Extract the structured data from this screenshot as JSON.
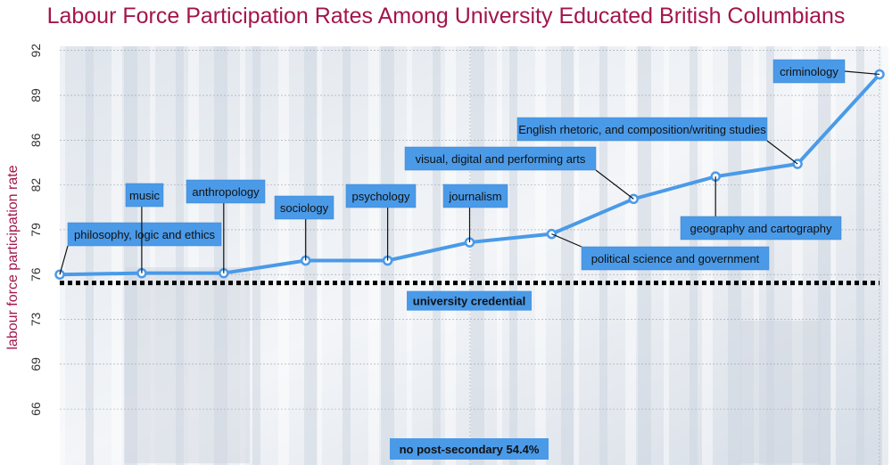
{
  "chart_data": {
    "type": "line",
    "title": "Labour Force Participation Rates Among University Educated British Columbians",
    "xlabel": "",
    "ylabel": "labour force participation rate",
    "ylim": [
      62.4,
      92.3
    ],
    "yticks": [
      92.0,
      88.8,
      85.6,
      82.4,
      79.2,
      76.0,
      72.8,
      69.6,
      66.4
    ],
    "ytick_labels": [
      "92",
      "89",
      "86",
      "82",
      "79",
      "76",
      "73",
      "69",
      "66"
    ],
    "grid": true,
    "categories": [
      "philosophy, logic and ethics",
      "music",
      "anthropology",
      "sociology",
      "psychology",
      "journalism",
      "political science and government",
      "visual, digital and performing arts",
      "geography and cartography",
      "English rhetoric, and composition/writing studies",
      "criminology"
    ],
    "values": [
      76.0,
      76.1,
      76.1,
      77.0,
      77.0,
      78.3,
      78.9,
      81.4,
      83.0,
      83.9,
      90.3
    ],
    "reference_lines": [
      {
        "label": "university credential",
        "value": 75.4,
        "style": "dotted"
      }
    ],
    "annotations": [
      {
        "label": "no post-secondary",
        "value_text": "54.4%"
      }
    ],
    "colors": {
      "line": "#4a9ae8",
      "label_bg": "#4a9ae8",
      "title": "#a3154a"
    }
  }
}
